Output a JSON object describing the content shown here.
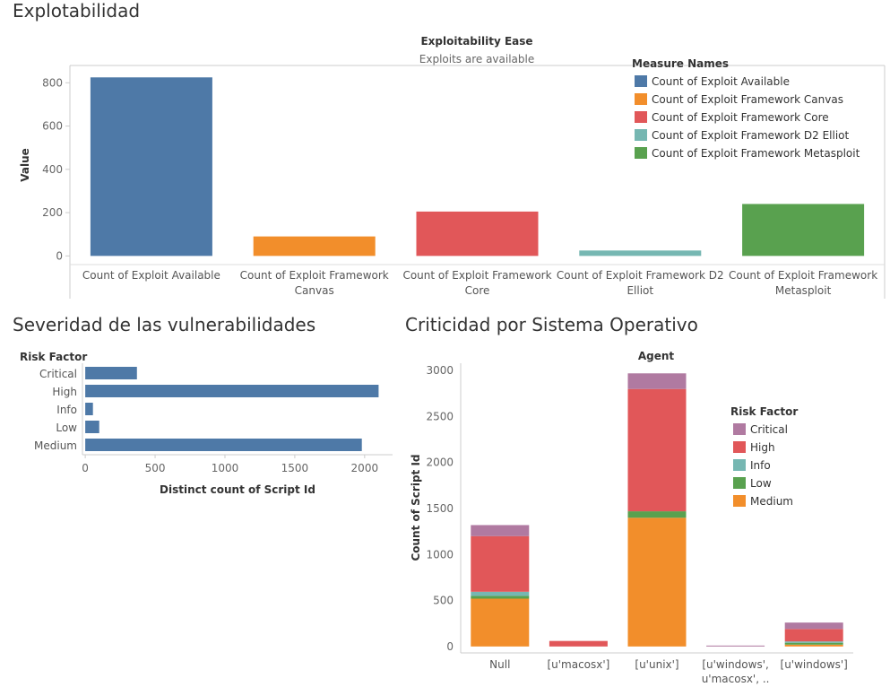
{
  "sections": {
    "exploitability": "Explotabilidad",
    "severity": "Severidad de las vulnerabilidades",
    "os": "Criticidad por Sistema Operativo"
  },
  "colors": {
    "blue": "#4e79a7",
    "orange": "#f28e2b",
    "red": "#e15759",
    "teal": "#76b7b2",
    "green": "#59a14f",
    "purple": "#b07aa1"
  },
  "chart_data": [
    {
      "type": "bar",
      "title": "Exploitability Ease",
      "subtitle": "Exploits are available",
      "ylabel": "Value",
      "xlabel": "",
      "ylim": [
        -40,
        880
      ],
      "yticks": [
        0,
        200,
        400,
        600,
        800
      ],
      "legend_title": "Measure Names",
      "legend_position": "top-right",
      "categories": [
        [
          "Count of Exploit Available"
        ],
        [
          "Count of Exploit Framework",
          "Canvas"
        ],
        [
          "Count of Exploit Framework",
          "Core"
        ],
        [
          "Count of Exploit Framework D2",
          "Elliot"
        ],
        [
          "Count of Exploit Framework",
          "Metasploit"
        ]
      ],
      "legend": [
        "Count of Exploit Available",
        "Count of Exploit Framework Canvas",
        "Count of Exploit Framework Core",
        "Count of Exploit Framework D2 Elliot",
        "Count of Exploit Framework Metasploit"
      ],
      "values": [
        825,
        90,
        205,
        25,
        240
      ],
      "colors": [
        "#4e79a7",
        "#f28e2b",
        "#e15759",
        "#76b7b2",
        "#59a14f"
      ]
    },
    {
      "type": "bar",
      "orientation": "horizontal",
      "title": "",
      "ylabel": "Risk Factor",
      "xlabel": "Distinct count of Script Id",
      "xlim": [
        -20,
        2200
      ],
      "xticks": [
        0,
        500,
        1000,
        1500,
        2000
      ],
      "categories": [
        "Critical",
        "High",
        "Info",
        "Low",
        "Medium"
      ],
      "values": [
        370,
        2100,
        55,
        100,
        1980
      ],
      "color": "#4e79a7"
    },
    {
      "type": "bar",
      "stacked": true,
      "title": "Agent",
      "ylabel": "Count of Script Id",
      "xlabel": "",
      "ylim": [
        -70,
        3080
      ],
      "yticks": [
        0,
        500,
        1000,
        1500,
        2000,
        2500,
        3000
      ],
      "legend_title": "Risk Factor",
      "legend_position": "right",
      "categories": [
        [
          "Null"
        ],
        [
          "[u'macosx']"
        ],
        [
          "[u'unix']"
        ],
        [
          "[u'windows',",
          "u'macosx', .."
        ],
        [
          "[u'windows']"
        ]
      ],
      "series": [
        {
          "name": "Medium",
          "color": "#f28e2b",
          "values": [
            520,
            0,
            1400,
            0,
            20
          ]
        },
        {
          "name": "Low",
          "color": "#59a14f",
          "values": [
            30,
            0,
            70,
            0,
            20
          ]
        },
        {
          "name": "Info",
          "color": "#76b7b2",
          "values": [
            45,
            0,
            0,
            0,
            15
          ]
        },
        {
          "name": "High",
          "color": "#e15759",
          "values": [
            605,
            60,
            1330,
            0,
            135
          ]
        },
        {
          "name": "Critical",
          "color": "#b07aa1",
          "values": [
            120,
            0,
            170,
            10,
            70
          ]
        }
      ],
      "legend_order": [
        "Critical",
        "High",
        "Info",
        "Low",
        "Medium"
      ]
    }
  ]
}
